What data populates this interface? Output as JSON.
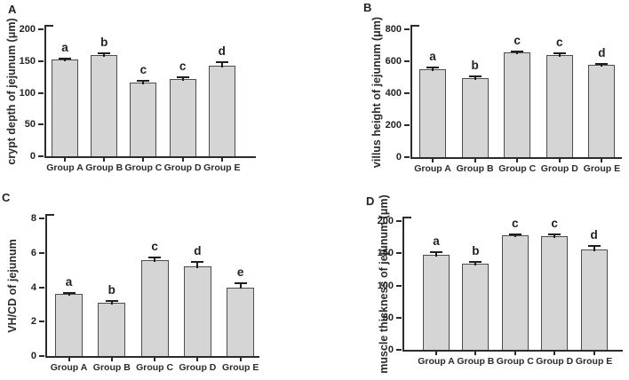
{
  "figure": {
    "description": "Four-panel bar figure of jejunum morphology measurements across five groups",
    "panels": [
      "A",
      "B",
      "C",
      "D"
    ]
  },
  "colors": {
    "bar_fill": "#d5d5d5",
    "bar_border": "#4d4d4d",
    "axis": "#2b2b2b",
    "text": "#222222",
    "background": "#ffffff"
  },
  "chart_data": [
    {
      "type": "bar",
      "panel_label": "A",
      "ylabel": "crypt depth of jejunum (μm)",
      "xlabel": "",
      "categories": [
        "Group A",
        "Group B",
        "Group C",
        "Group D",
        "Group E"
      ],
      "values": [
        152,
        160,
        116,
        121,
        143
      ],
      "errors": [
        2,
        2,
        3,
        3,
        5
      ],
      "sig_letters": [
        "a",
        "b",
        "c",
        "c",
        "d"
      ],
      "ylim": [
        0,
        200
      ],
      "yticks": [
        0,
        50,
        100,
        150,
        200
      ],
      "grid": false,
      "legend": "none"
    },
    {
      "type": "bar",
      "panel_label": "B",
      "ylabel": "villus height of jejunum (μm)",
      "xlabel": "",
      "categories": [
        "Group A",
        "Group B",
        "Group C",
        "Group D",
        "Group E"
      ],
      "values": [
        550,
        495,
        653,
        640,
        576
      ],
      "errors": [
        10,
        8,
        10,
        10,
        10
      ],
      "sig_letters": [
        "a",
        "b",
        "c",
        "c",
        "d"
      ],
      "ylim": [
        0,
        800
      ],
      "yticks": [
        0,
        200,
        400,
        600,
        800
      ],
      "grid": false,
      "legend": "none"
    },
    {
      "type": "bar",
      "panel_label": "C",
      "ylabel": "VH/CD of jejunum",
      "xlabel": "",
      "categories": [
        "Group A",
        "Group B",
        "Group C",
        "Group D",
        "Group E"
      ],
      "values": [
        3.6,
        3.1,
        5.55,
        5.2,
        4.0
      ],
      "errors": [
        0.08,
        0.08,
        0.18,
        0.25,
        0.22
      ],
      "sig_letters": [
        "a",
        "b",
        "c",
        "d",
        "e"
      ],
      "ylim": [
        0,
        8
      ],
      "yticks": [
        0,
        2,
        4,
        6,
        8
      ],
      "grid": false,
      "legend": "none"
    },
    {
      "type": "bar",
      "panel_label": "D",
      "ylabel": "muscle thickness of jejunum (μm)",
      "xlabel": "",
      "categories": [
        "Group A",
        "Group B",
        "Group C",
        "Group D",
        "Group E"
      ],
      "values": [
        147,
        134,
        178,
        177,
        156
      ],
      "errors": [
        5,
        2,
        2,
        2,
        6
      ],
      "sig_letters": [
        "a",
        "b",
        "c",
        "c",
        "d"
      ],
      "ylim": [
        0,
        200
      ],
      "yticks": [
        0,
        50,
        100,
        150,
        200
      ],
      "grid": false,
      "legend": "none"
    }
  ]
}
